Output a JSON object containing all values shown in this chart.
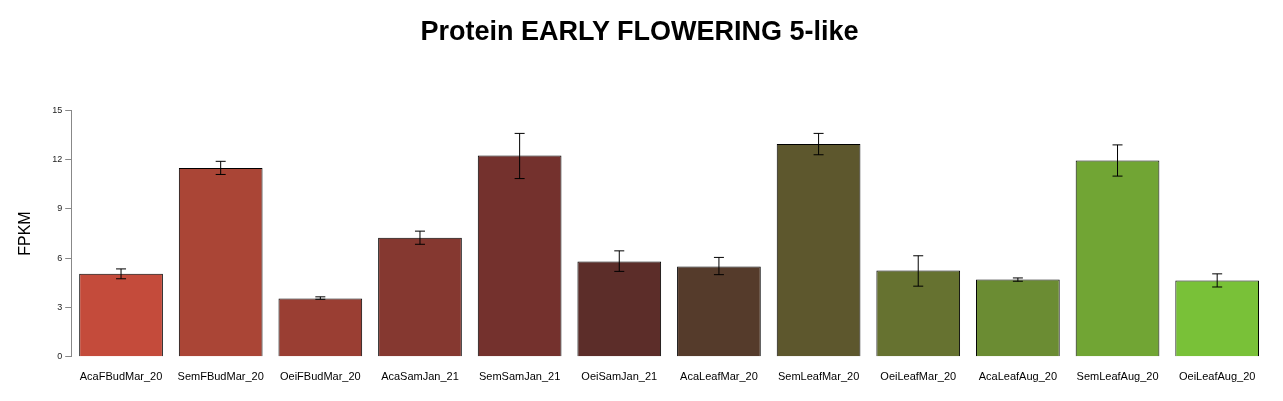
{
  "chart_data": {
    "type": "bar",
    "title": "Protein EARLY FLOWERING 5-like",
    "ylabel": "FPKM",
    "categories": [
      "AcaFBudMar_20",
      "SemFBudMar_20",
      "OeiFBudMar_20",
      "AcaSamJan_21",
      "SemSamJan_21",
      "OeiSamJan_21",
      "AcaLeafMar_20",
      "SemLeafMar_20",
      "OeiLeafMar_20",
      "AcaLeafAug_20",
      "SemLeafAug_20",
      "OeiLeafAug_20"
    ],
    "values": [
      5.05,
      11.5,
      3.55,
      7.25,
      12.25,
      5.8,
      5.5,
      12.95,
      5.25,
      4.7,
      11.95,
      4.65
    ],
    "errors": [
      [
        4.75,
        5.35
      ],
      [
        11.1,
        11.9
      ],
      [
        3.5,
        3.65
      ],
      [
        6.85,
        7.65
      ],
      [
        10.85,
        13.6
      ],
      [
        5.2,
        6.45
      ],
      [
        5.0,
        6.05
      ],
      [
        12.3,
        13.6
      ],
      [
        4.3,
        6.15
      ],
      [
        4.6,
        4.8
      ],
      [
        11.0,
        12.9
      ],
      [
        4.25,
        5.05
      ]
    ],
    "colors": [
      "#c44b3b",
      "#aa4536",
      "#9a3e33",
      "#853830",
      "#74312d",
      "#5c2d29",
      "#553b2b",
      "#5d572d",
      "#667230",
      "#6b8c33",
      "#71a534",
      "#79c138"
    ],
    "ylim": [
      0,
      15
    ],
    "yticks": [
      0,
      3,
      6,
      9,
      12,
      15
    ],
    "grid": false,
    "legend": false
  }
}
